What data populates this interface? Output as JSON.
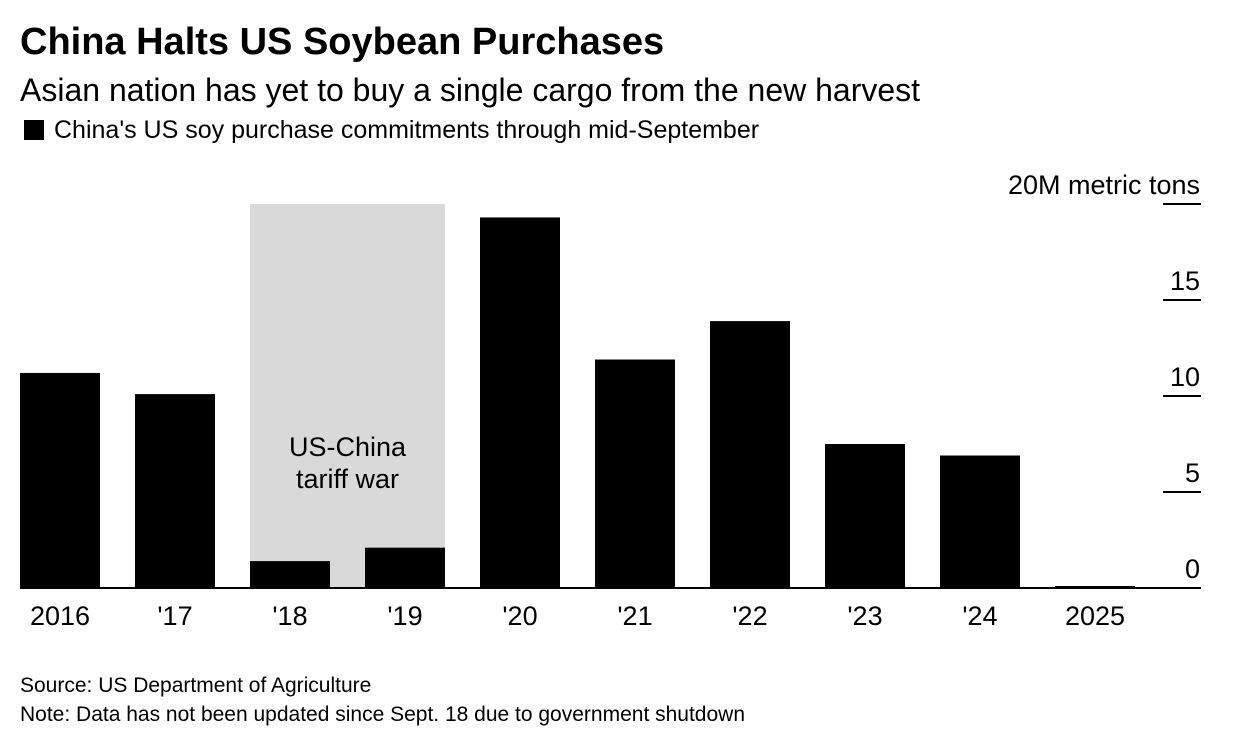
{
  "title": "China Halts US Soybean Purchases",
  "subtitle": "Asian nation has yet to buy a single cargo from the new harvest",
  "legend_label": "China's US soy purchase commitments through mid-September",
  "source": "Source: US Department of Agriculture",
  "note": "Note: Data has not been updated since Sept. 18 due to government shutdown",
  "colors": {
    "bar": "#000000",
    "highlight_band": "#d9d9d9",
    "background": "#ffffff"
  },
  "chart_data": {
    "type": "bar",
    "categories": [
      "2016",
      "'17",
      "'18",
      "'19",
      "'20",
      "'21",
      "'22",
      "'23",
      "'24",
      "2025"
    ],
    "series": [
      {
        "name": "China's US soy purchase commitments through mid-September",
        "values": [
          11.2,
          10.1,
          1.4,
          2.1,
          19.3,
          11.9,
          13.9,
          7.5,
          6.9,
          0.0
        ]
      }
    ],
    "ylim": [
      0,
      20
    ],
    "yticks": [
      0,
      5,
      10,
      15,
      20
    ],
    "ytick_labels": [
      "0",
      "5",
      "10",
      "15",
      "20M metric tons"
    ],
    "yaxis_position": "right",
    "grid": false,
    "legend_position": "top-left",
    "annotations": [
      {
        "text_lines": [
          "US-China",
          "tariff war"
        ],
        "shaded_categories": [
          "'18",
          "'19"
        ]
      }
    ]
  }
}
